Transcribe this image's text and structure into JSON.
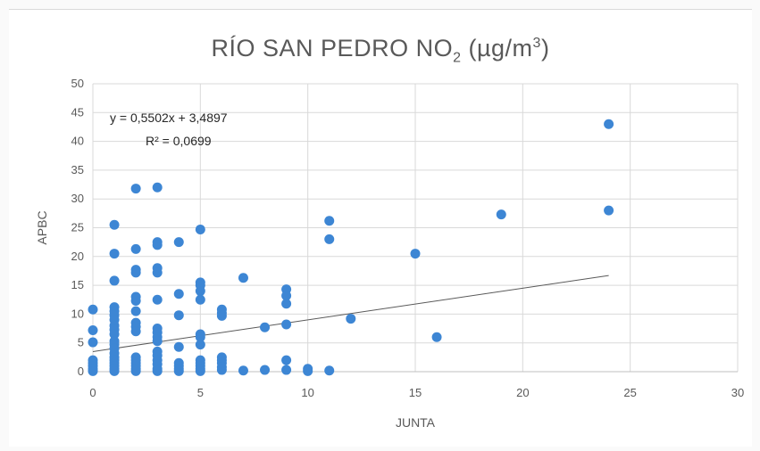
{
  "chart_data": {
    "type": "scatter",
    "title": "RÍO SAN PEDRO NO",
    "title_subscript": "2",
    "title_units": " (µg/m",
    "title_units_sup": "3",
    "title_units_close": ")",
    "xlabel": "JUNTA",
    "ylabel": "APBC",
    "xlim": [
      0,
      30
    ],
    "ylim": [
      0,
      50
    ],
    "xticks": [
      0,
      5,
      10,
      15,
      20,
      25,
      30
    ],
    "yticks": [
      0,
      5,
      10,
      15,
      20,
      25,
      30,
      35,
      40,
      45,
      50
    ],
    "grid": true,
    "point_color": "#3d86d4",
    "trendline": {
      "equation_text": "y = 0,5502x + 3,4897",
      "r2_text": "R² = 0,0699",
      "slope": 0.5502,
      "intercept": 3.4897,
      "x_range": [
        0,
        24
      ],
      "color": "#595959"
    },
    "points": [
      [
        0,
        10.8
      ],
      [
        0,
        7.2
      ],
      [
        0,
        5.1
      ],
      [
        0,
        2
      ],
      [
        0,
        1.5
      ],
      [
        0,
        1
      ],
      [
        0,
        0.5
      ],
      [
        0,
        0.1
      ],
      [
        1,
        25.5
      ],
      [
        1,
        20.5
      ],
      [
        1,
        15.8
      ],
      [
        1,
        11.2
      ],
      [
        1,
        10.5
      ],
      [
        1,
        9.8
      ],
      [
        1,
        9
      ],
      [
        1,
        8
      ],
      [
        1,
        7.3
      ],
      [
        1,
        6.5
      ],
      [
        1,
        5.3
      ],
      [
        1,
        4.7
      ],
      [
        1,
        4
      ],
      [
        1,
        3.2
      ],
      [
        1,
        2.5
      ],
      [
        1,
        2
      ],
      [
        1,
        1.5
      ],
      [
        1,
        1
      ],
      [
        1,
        0.5
      ],
      [
        1,
        0.1
      ],
      [
        2,
        31.8
      ],
      [
        2,
        21.3
      ],
      [
        2,
        17.7
      ],
      [
        2,
        17.2
      ],
      [
        2,
        13
      ],
      [
        2,
        12.3
      ],
      [
        2,
        10.5
      ],
      [
        2,
        8.5
      ],
      [
        2,
        7.8
      ],
      [
        2,
        7
      ],
      [
        2,
        2.5
      ],
      [
        2,
        2
      ],
      [
        2,
        1.5
      ],
      [
        2,
        1
      ],
      [
        2,
        0.5
      ],
      [
        2,
        0.1
      ],
      [
        3,
        32
      ],
      [
        3,
        22.5
      ],
      [
        3,
        22
      ],
      [
        3,
        18
      ],
      [
        3,
        17.2
      ],
      [
        3,
        12.5
      ],
      [
        3,
        7.5
      ],
      [
        3,
        6.8
      ],
      [
        3,
        6
      ],
      [
        3,
        5.3
      ],
      [
        3,
        3.5
      ],
      [
        3,
        2.8
      ],
      [
        3,
        2
      ],
      [
        3,
        1.3
      ],
      [
        3,
        0.5
      ],
      [
        3,
        0.1
      ],
      [
        4,
        22.5
      ],
      [
        4,
        13.5
      ],
      [
        4,
        9.8
      ],
      [
        4,
        4.3
      ],
      [
        4,
        1.5
      ],
      [
        4,
        1
      ],
      [
        4,
        0.5
      ],
      [
        4,
        0.1
      ],
      [
        5,
        24.7
      ],
      [
        5,
        15.5
      ],
      [
        5,
        15
      ],
      [
        5,
        14
      ],
      [
        5,
        12.5
      ],
      [
        5,
        6.5
      ],
      [
        5,
        6
      ],
      [
        5,
        4.7
      ],
      [
        5,
        2
      ],
      [
        5,
        1.5
      ],
      [
        5,
        1
      ],
      [
        5,
        0.5
      ],
      [
        5,
        0.1
      ],
      [
        6,
        10.8
      ],
      [
        6,
        10.2
      ],
      [
        6,
        9.7
      ],
      [
        6,
        2.5
      ],
      [
        6,
        2
      ],
      [
        6,
        1.5
      ],
      [
        6,
        0.8
      ],
      [
        6,
        0.3
      ],
      [
        7,
        16.3
      ],
      [
        7,
        0.2
      ],
      [
        8,
        7.7
      ],
      [
        8,
        0.3
      ],
      [
        9,
        14.3
      ],
      [
        9,
        13.2
      ],
      [
        9,
        11.8
      ],
      [
        9,
        8.2
      ],
      [
        9,
        2
      ],
      [
        9,
        0.3
      ],
      [
        10,
        0.5
      ],
      [
        10,
        0.1
      ],
      [
        11,
        26.2
      ],
      [
        11,
        23
      ],
      [
        11,
        0.2
      ],
      [
        12,
        9.2
      ],
      [
        15,
        20.5
      ],
      [
        16,
        6
      ],
      [
        19,
        27.3
      ],
      [
        24,
        43
      ],
      [
        24,
        28
      ]
    ]
  }
}
